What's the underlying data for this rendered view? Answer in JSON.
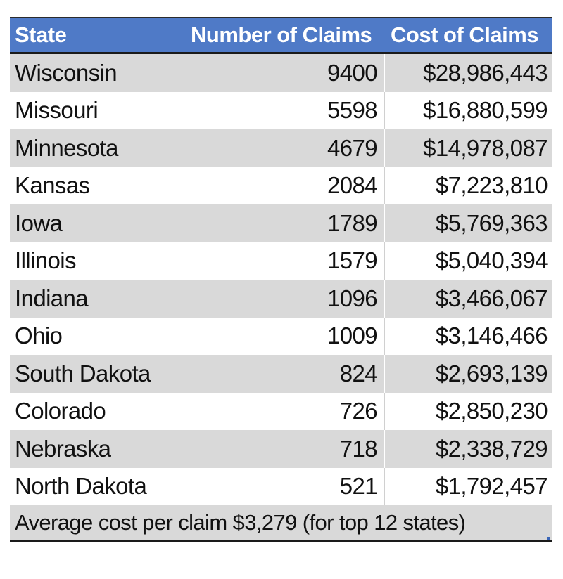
{
  "table": {
    "headers": {
      "state": "State",
      "claims": "Number of Claims",
      "cost": "Cost of Claims"
    },
    "rows": [
      {
        "state": "Wisconsin",
        "claims": "9400",
        "cost": "$28,986,443"
      },
      {
        "state": "Missouri",
        "claims": "5598",
        "cost": "$16,880,599"
      },
      {
        "state": "Minnesota",
        "claims": "4679",
        "cost": "$14,978,087"
      },
      {
        "state": "Kansas",
        "claims": "2084",
        "cost": "$7,223,810"
      },
      {
        "state": "Iowa",
        "claims": "1789",
        "cost": "$5,769,363"
      },
      {
        "state": "Illinois",
        "claims": "1579",
        "cost": "$5,040,394"
      },
      {
        "state": "Indiana",
        "claims": "1096",
        "cost": "$3,466,067"
      },
      {
        "state": "Ohio",
        "claims": "1009",
        "cost": "$3,146,466"
      },
      {
        "state": "South Dakota",
        "claims": "824",
        "cost": "$2,693,139"
      },
      {
        "state": "Colorado",
        "claims": "726",
        "cost": "$2,850,230"
      },
      {
        "state": "Nebraska",
        "claims": "718",
        "cost": "$2,338,729"
      },
      {
        "state": "North Dakota",
        "claims": "521",
        "cost": "$1,792,457"
      }
    ],
    "footer": "Average cost per claim $3,279 (for top 12 states)"
  },
  "colors": {
    "header_bg": "#4f7ac7",
    "header_text": "#ffffff",
    "row_shaded": "#d9d9d9",
    "row_plain": "#ffffff"
  }
}
